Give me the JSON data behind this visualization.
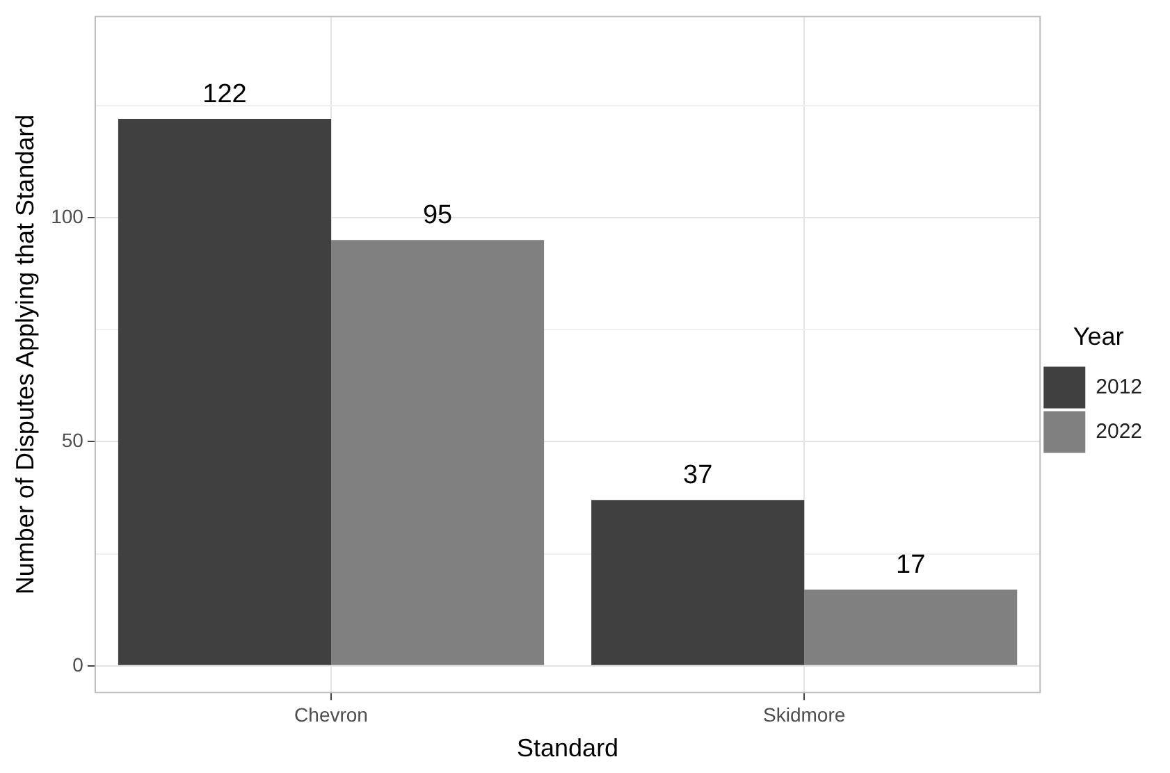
{
  "chart_data": {
    "type": "bar",
    "xlabel": "Standard",
    "ylabel": "Number of Disputes Applying that Standard",
    "legend_title": "Year",
    "categories": [
      "Chevron",
      "Skidmore"
    ],
    "series": [
      {
        "name": "2012",
        "color": "#404040",
        "values": [
          122,
          37
        ]
      },
      {
        "name": "2022",
        "color": "#808080",
        "values": [
          95,
          17
        ]
      }
    ],
    "ylim": [
      -6.1,
      145
    ],
    "yticks": [
      0,
      {
        "value": 25,
        "label": null
      },
      50,
      {
        "value": 75,
        "label": null
      },
      100,
      {
        "value": 125,
        "label": null
      }
    ],
    "grid": true,
    "legend": "right",
    "data_labels": true
  }
}
